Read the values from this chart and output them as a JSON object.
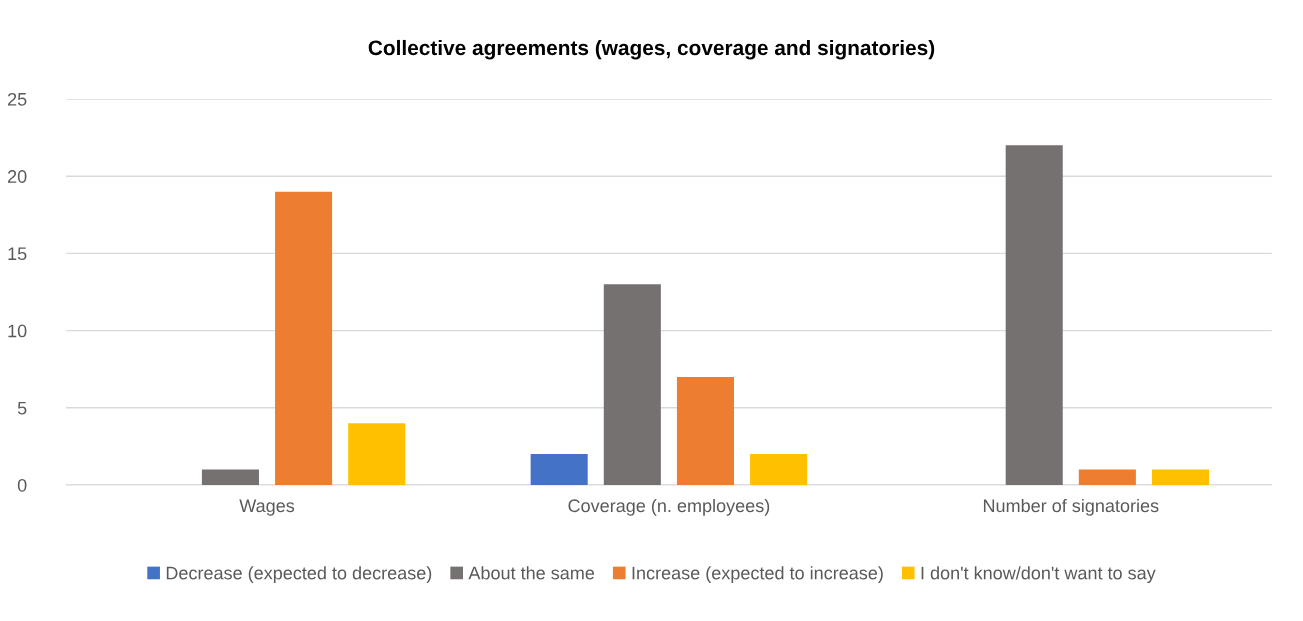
{
  "chart_data": {
    "type": "bar",
    "title": "Collective agreements (wages, coverage and signatories)",
    "categories": [
      "Wages",
      "Coverage (n. employees)",
      "Number of signatories"
    ],
    "series": [
      {
        "name": "Decrease (expected to decrease)",
        "color": "#4472c4",
        "values": [
          0,
          2,
          0
        ]
      },
      {
        "name": "About the same",
        "color": "#767171",
        "values": [
          1,
          13,
          22
        ]
      },
      {
        "name": "Increase (expected to increase)",
        "color": "#ed7d31",
        "values": [
          19,
          7,
          1
        ]
      },
      {
        "name": "I don't know/don't want to say",
        "color": "#ffc000",
        "values": [
          4,
          2,
          1
        ]
      }
    ],
    "ylim": [
      0,
      25
    ],
    "yticks": [
      0,
      5,
      10,
      15,
      20,
      25
    ],
    "grid": "y",
    "legend": "bottom"
  }
}
